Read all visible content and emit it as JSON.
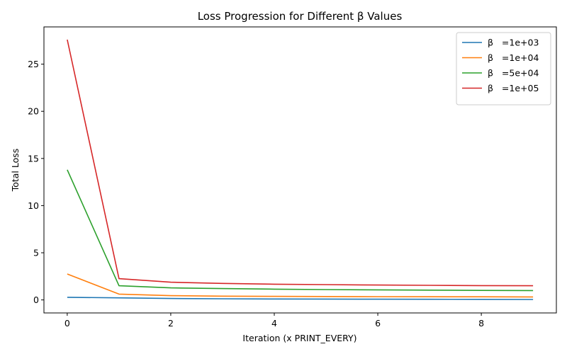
{
  "chart_data": {
    "type": "line",
    "title": "Loss Progression for Different β Values",
    "xlabel": "Iteration (x PRINT_EVERY)",
    "ylabel": "Total Loss",
    "x": [
      0,
      1,
      2,
      3,
      4,
      5,
      6,
      7,
      8,
      9
    ],
    "xlim": [
      -0.45,
      9.45
    ],
    "ylim": [
      -1.38,
      28.95
    ],
    "xticks": [
      0,
      2,
      4,
      6,
      8
    ],
    "yticks": [
      0,
      5,
      10,
      15,
      20,
      25
    ],
    "grid": false,
    "legend_position": "upper-right",
    "series": [
      {
        "name": "β   =1e+03",
        "color": "#1f77b4",
        "values": [
          0.28,
          0.22,
          0.15,
          0.12,
          0.1,
          0.09,
          0.08,
          0.07,
          0.06,
          0.05
        ]
      },
      {
        "name": "β   =1e+04",
        "color": "#ff7f0e",
        "values": [
          2.75,
          0.62,
          0.45,
          0.4,
          0.38,
          0.36,
          0.35,
          0.34,
          0.33,
          0.32
        ]
      },
      {
        "name": "β   =5e+04",
        "color": "#2ca02c",
        "values": [
          13.8,
          1.5,
          1.28,
          1.2,
          1.14,
          1.1,
          1.07,
          1.04,
          1.01,
          0.99
        ]
      },
      {
        "name": "β   =1e+05",
        "color": "#d62728",
        "values": [
          27.6,
          2.25,
          1.88,
          1.75,
          1.67,
          1.62,
          1.58,
          1.55,
          1.52,
          1.5
        ]
      }
    ]
  }
}
